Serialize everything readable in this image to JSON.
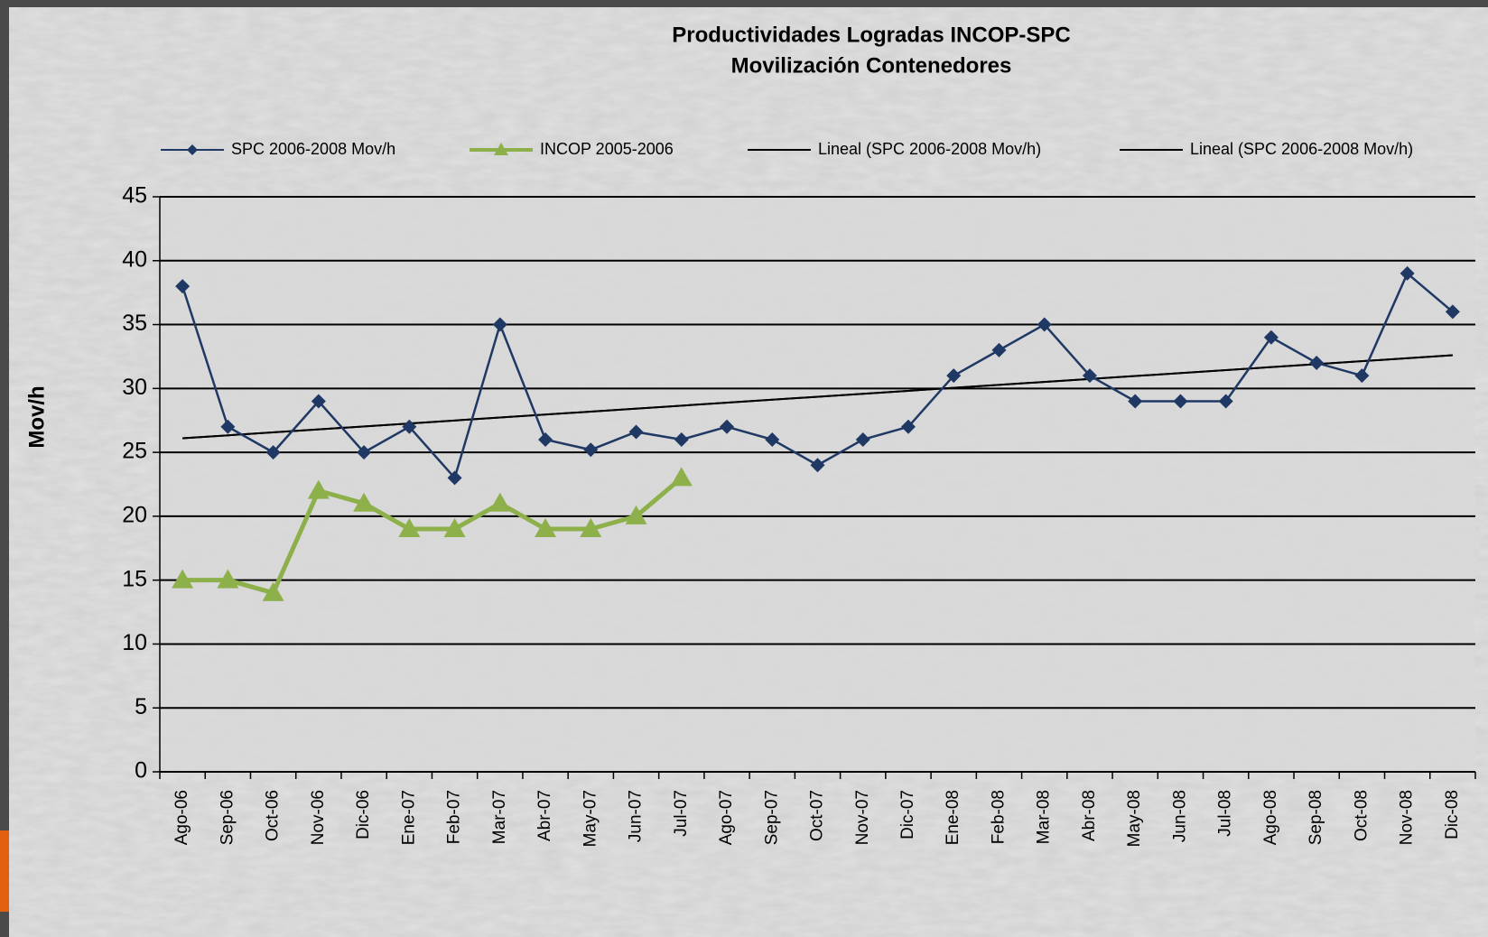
{
  "chart_data": {
    "type": "line",
    "title": "Productividades Logradas INCOP-SPC",
    "subtitle": "Movilización Contenedores",
    "y_label": "Mov/h",
    "categories": [
      "Ago-06",
      "Sep-06",
      "Oct-06",
      "Nov-06",
      "Dic-06",
      "Ene-07",
      "Feb-07",
      "Mar-07",
      "Abr-07",
      "May-07",
      "Jun-07",
      "Jul-07",
      "Ago-07",
      "Sep-07",
      "Oct-07",
      "Nov-07",
      "Dic-07",
      "Ene-08",
      "Feb-08",
      "Mar-08",
      "Abr-08",
      "May-08",
      "Jun-08",
      "Jul-08",
      "Ago-08",
      "Sep-08",
      "Oct-08",
      "Nov-08",
      "Dic-08"
    ],
    "series": [
      {
        "name": "SPC 2006-2008 Mov/h",
        "color": "#1f3864",
        "marker": "diamond",
        "values": [
          38,
          27,
          25,
          29,
          25,
          27,
          23,
          35,
          26,
          25.2,
          26.6,
          26,
          27,
          26,
          24,
          26,
          27,
          31,
          33,
          35,
          31,
          29,
          29,
          29,
          34,
          32,
          31,
          39,
          36
        ]
      },
      {
        "name": "INCOP 2005-2006",
        "color": "#8db04b",
        "marker": "triangle",
        "values": [
          15,
          15,
          14,
          22,
          21,
          19,
          19,
          21,
          19,
          19,
          20,
          23,
          null,
          null,
          null,
          null,
          null,
          null,
          null,
          null,
          null,
          null,
          null,
          null,
          null,
          null,
          null,
          null,
          null
        ]
      }
    ],
    "trendlines": [
      {
        "name": "Lineal (SPC 2006-2008 Mov/h)",
        "color": "#000000",
        "values": [
          26.1,
          32.6
        ]
      },
      {
        "name": "Lineal (SPC 2006-2008 Mov/h)",
        "color": "#000000",
        "values": [
          26.1,
          32.6
        ]
      }
    ],
    "ylim": [
      0,
      45
    ],
    "yticks": [
      0,
      5,
      10,
      15,
      20,
      25,
      30,
      35,
      40,
      45
    ],
    "grid": true
  }
}
